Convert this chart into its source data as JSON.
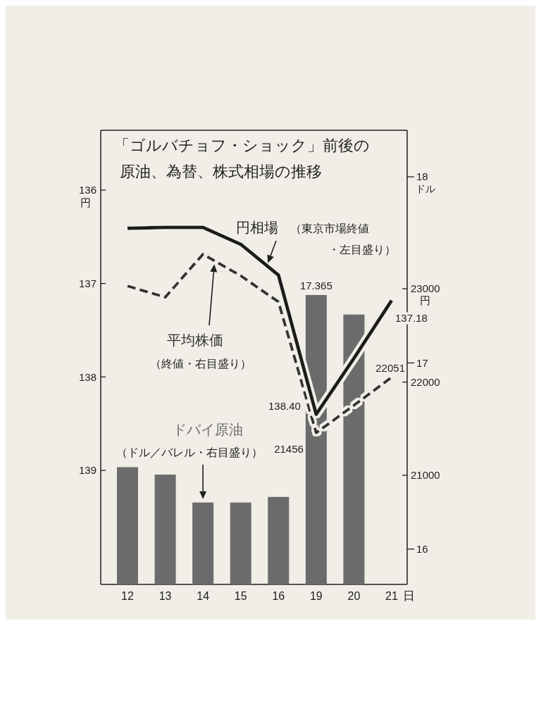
{
  "chart_data": {
    "type": "line",
    "title": "「ゴルバチョフ・ショック」前後の原油、為替、株式相場の推移",
    "categories": [
      "12",
      "13",
      "14",
      "15",
      "16",
      "19",
      "20",
      "21"
    ],
    "xlabel": "日",
    "ylabel": "円",
    "y2label": "円",
    "y3label": "ドル",
    "ylim": [
      140.22,
      135.36
    ],
    "yticks": [
      136,
      137,
      138,
      139
    ],
    "y2lim": [
      19830,
      24700
    ],
    "y2ticks": [
      21000,
      22000,
      23000
    ],
    "y3lim": [
      15.81,
      18.25
    ],
    "y3ticks": [
      16,
      17,
      18
    ],
    "series": [
      {
        "name": "円相場",
        "color": "#1c1c1c",
        "line_style": "solid",
        "values": [
          136.41,
          136.4,
          136.4,
          136.58,
          136.91,
          138.4,
          137.8,
          137.18
        ],
        "value_labels": [
          null,
          null,
          null,
          null,
          null,
          "138.40",
          null,
          "137.18"
        ]
      },
      {
        "name": "平均株価",
        "axis": "y2",
        "color": "#333333",
        "line_style": "dashed",
        "values": [
          23030,
          22910,
          23370,
          23140,
          22860,
          21456,
          21750,
          22051
        ],
        "value_labels": [
          null,
          null,
          null,
          null,
          null,
          "21456",
          null,
          "22051"
        ]
      },
      {
        "name": "ドバイ原油",
        "type": "bar",
        "axis": "y3",
        "color": "#6b6b6b",
        "values": [
          16.44,
          16.4,
          16.25,
          16.25,
          16.28,
          17.365,
          17.26,
          null
        ],
        "value_labels": [
          null,
          null,
          null,
          null,
          null,
          "17.365",
          null,
          null
        ]
      }
    ],
    "annotations": [
      "（東京市場終値・左目盛り）",
      "（終値・右目盛り）",
      "（ドル／バレル・右目盛り）"
    ]
  }
}
